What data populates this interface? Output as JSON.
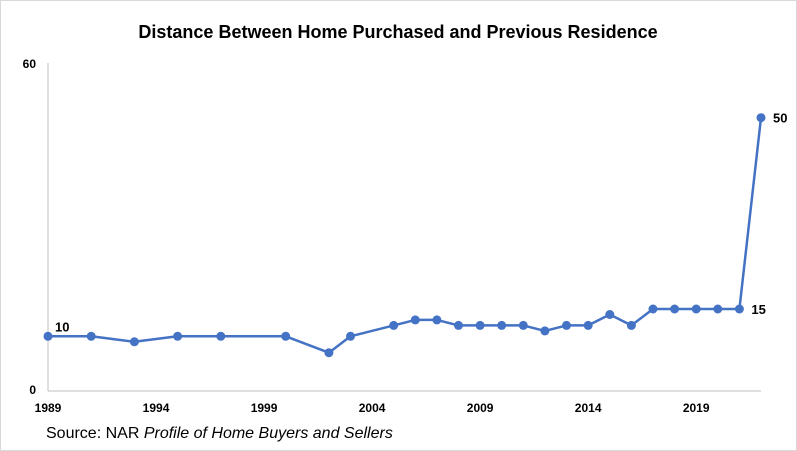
{
  "chart_data": {
    "type": "line",
    "title": "Distance Between Home Purchased and Previous Residence",
    "ylim": [
      0,
      60
    ],
    "y_tick_labels": [
      "0",
      "60"
    ],
    "xlim": [
      1989,
      2022
    ],
    "x_tick_labels": [
      "1989",
      "1994",
      "1999",
      "2004",
      "2009",
      "2014",
      "2019"
    ],
    "color": "#4472C4",
    "grid": false,
    "x": [
      1989,
      1991,
      1993,
      1995,
      1997,
      2000,
      2002,
      2003,
      2005,
      2006,
      2007,
      2008,
      2009,
      2010,
      2011,
      2012,
      2013,
      2014,
      2015,
      2016,
      2017,
      2018,
      2019,
      2020,
      2021,
      2022
    ],
    "y": [
      10,
      10,
      9,
      10,
      10,
      10,
      7,
      10,
      12,
      13,
      13,
      12,
      12,
      12,
      12,
      11,
      12,
      12,
      14,
      12,
      15,
      15,
      15,
      15,
      15,
      50
    ],
    "data_labels": [
      {
        "index": 0,
        "text": "10"
      },
      {
        "index": 24,
        "text": "15"
      },
      {
        "index": 25,
        "text": "50"
      }
    ]
  },
  "source": {
    "prefix": "Source: NAR ",
    "italic": "Profile of Home Buyers and Sellers"
  }
}
